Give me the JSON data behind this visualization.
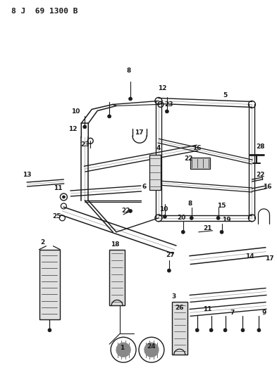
{
  "title": "8 J 69 1300 B",
  "bg_color": "#ffffff",
  "line_color": "#1a1a1a",
  "fig_width": 3.93,
  "fig_height": 5.33,
  "dpi": 100
}
